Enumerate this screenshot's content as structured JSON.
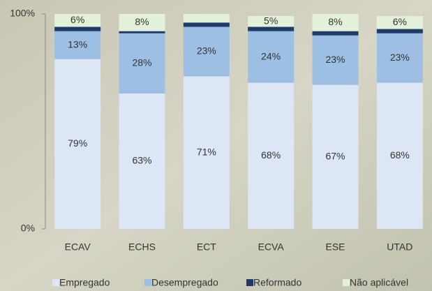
{
  "chart_data": {
    "type": "stacked_bar",
    "categories": [
      "ECAV",
      "ECHS",
      "ECT",
      "ECVA",
      "ESE",
      "UTAD"
    ],
    "series": [
      {
        "name": "Empregado",
        "color": "#dce6f4",
        "values": [
          79,
          63,
          71,
          68,
          67,
          68
        ],
        "value_labels": [
          "79%",
          "63%",
          "71%",
          "68%",
          "67%",
          "68%"
        ]
      },
      {
        "name": "Desempregado",
        "color": "#9dbfe4",
        "values": [
          13,
          28,
          23,
          24,
          23,
          23
        ],
        "value_labels": [
          "13%",
          "28%",
          "23%",
          "24%",
          "23%",
          "23%"
        ]
      },
      {
        "name": "Reformado",
        "color": "#1f3b68",
        "values": [
          2,
          1,
          2,
          2,
          2,
          2
        ]
      },
      {
        "name": "Não aplicável",
        "color": "#e3f1da",
        "values": [
          6,
          8,
          4,
          5,
          8,
          6
        ],
        "value_labels": [
          "6%",
          "8%",
          null,
          "5%",
          "8%",
          "6%"
        ]
      }
    ],
    "ylim": [
      0,
      100
    ],
    "yticks": [
      {
        "value": 0,
        "label": "0%"
      },
      {
        "value": 100,
        "label": "100%"
      }
    ],
    "legend": "bottom"
  }
}
